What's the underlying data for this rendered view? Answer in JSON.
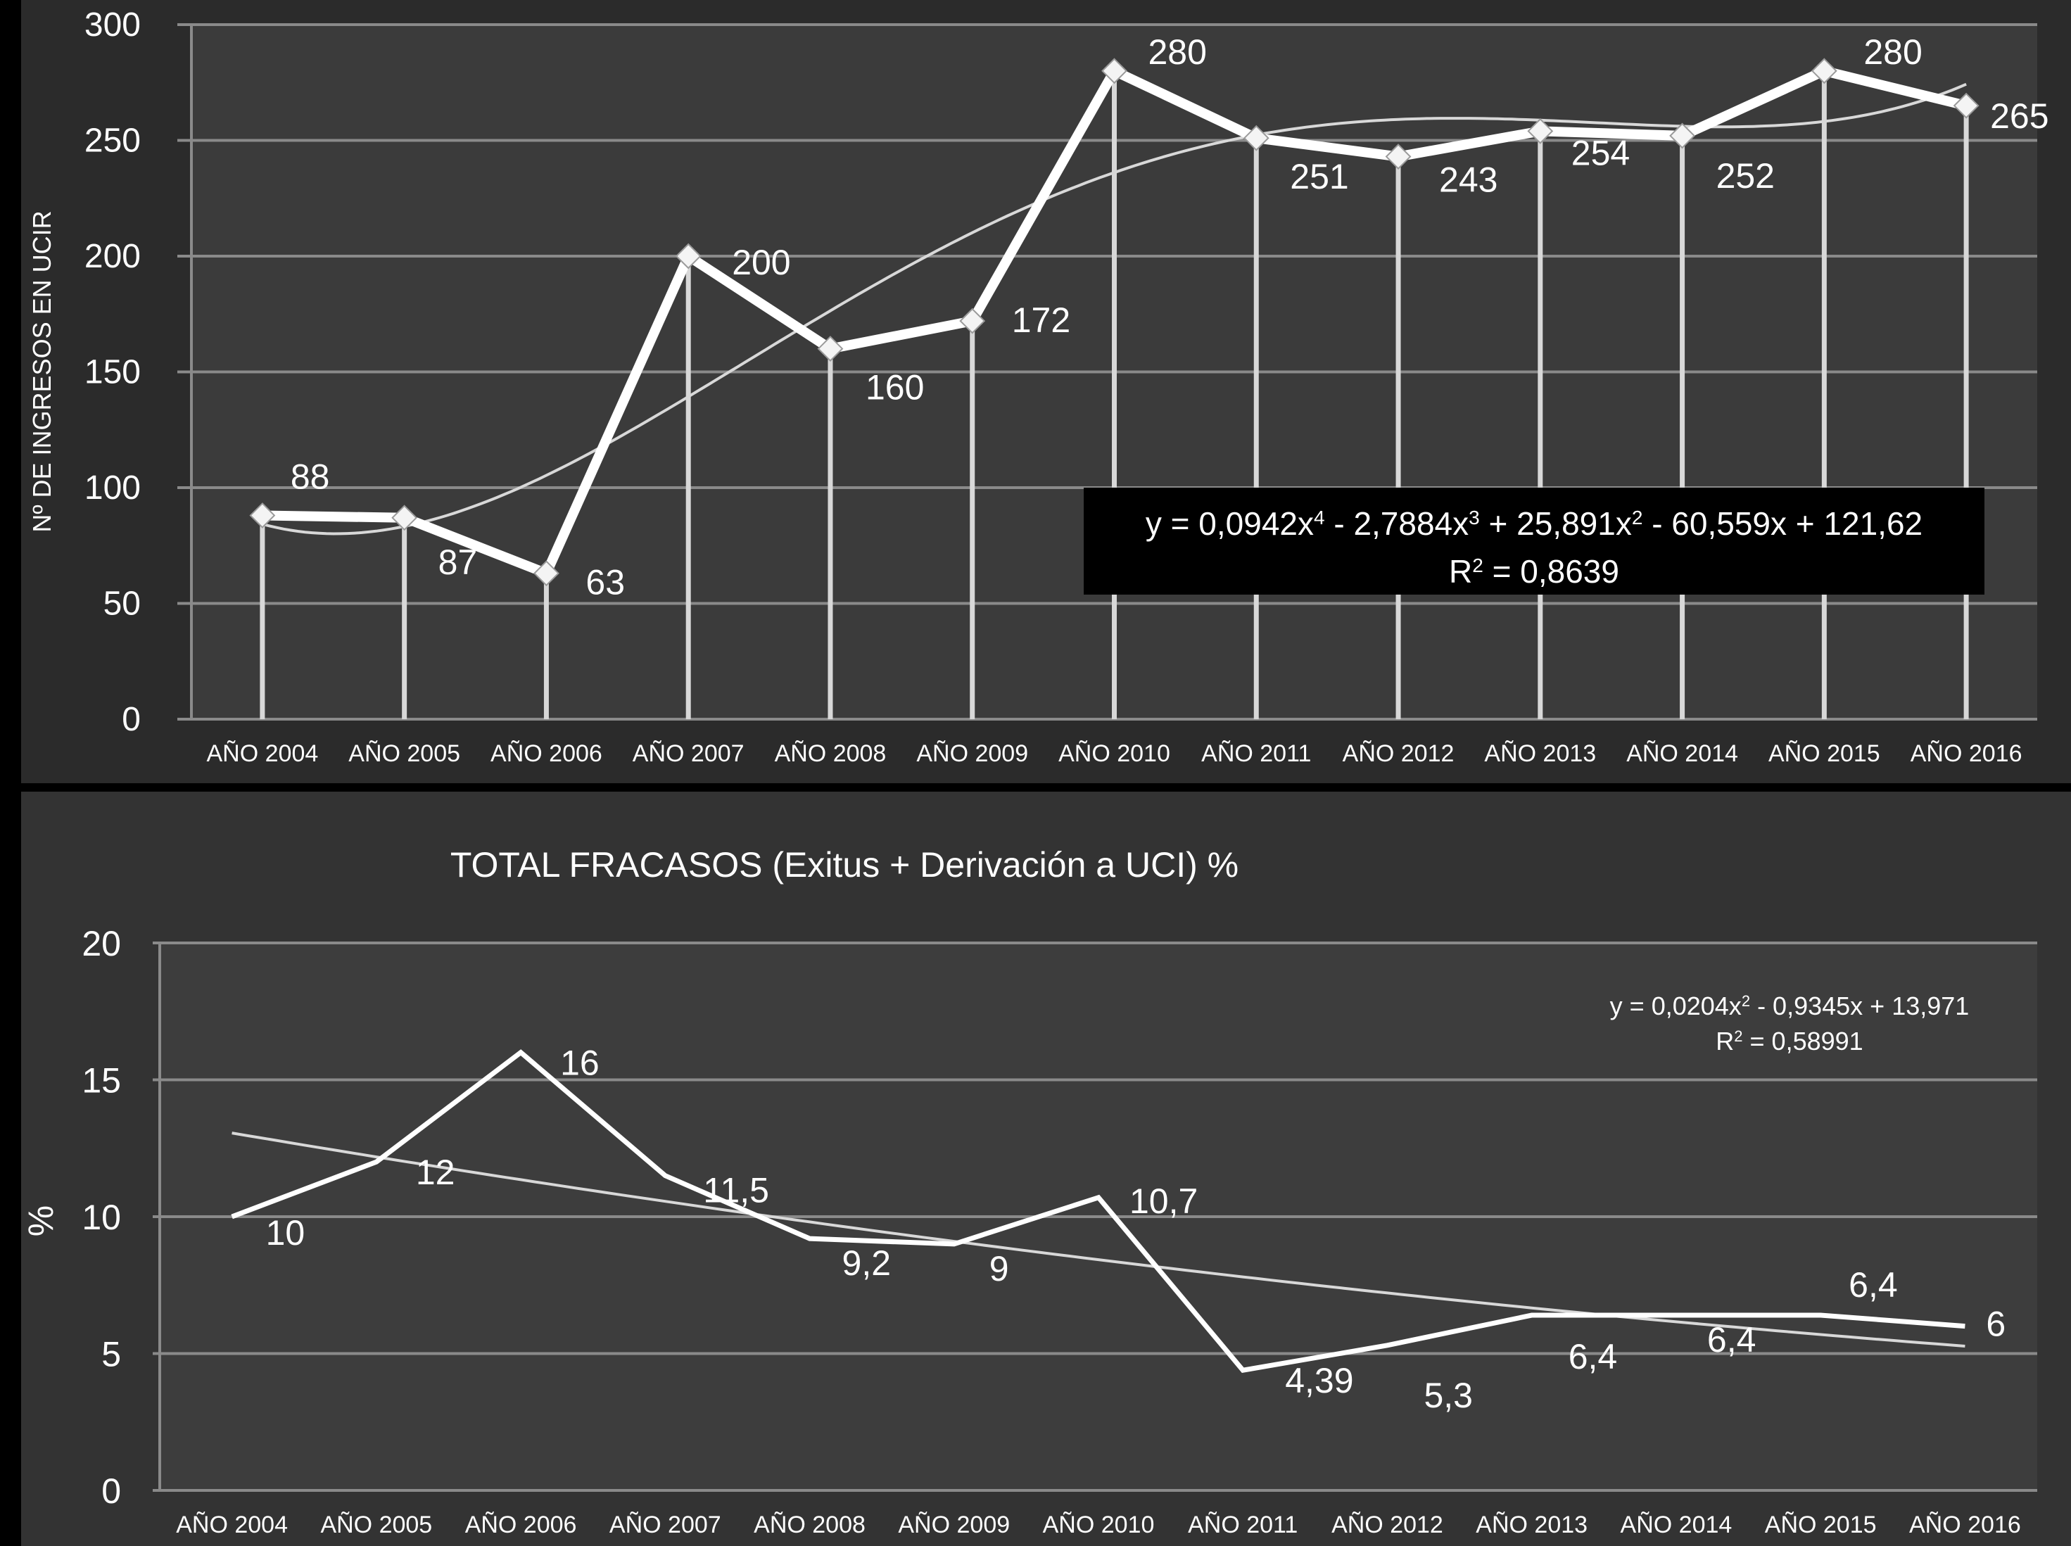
{
  "chart_data": [
    {
      "type": "line",
      "title": "",
      "xlabel": "",
      "ylabel": "Nº DE INGRESOS EN UCIR",
      "ylim": [
        0,
        300
      ],
      "yticks": [
        "0",
        "50",
        "100",
        "150",
        "200",
        "250",
        "300"
      ],
      "categories": [
        "AÑO 2004",
        "AÑO 2005",
        "AÑO 2006",
        "AÑO 2007",
        "AÑO 2008",
        "AÑO 2009",
        "AÑO 2010",
        "AÑO 2011",
        "AÑO 2012",
        "AÑO 2013",
        "AÑO 2014",
        "AÑO 2015",
        "AÑO 2016"
      ],
      "series": [
        {
          "values": [
            88,
            87,
            63,
            200,
            160,
            172,
            280,
            251,
            243,
            254,
            252,
            280,
            265
          ],
          "labels": [
            "88",
            "87",
            "63",
            "200",
            "160",
            "172",
            "280",
            "251",
            "243",
            "254",
            "252",
            "280",
            "265"
          ]
        }
      ],
      "trendline": {
        "type": "polynomial-4",
        "coefficients": [
          0.0942,
          -2.7884,
          25.891,
          -60.559,
          121.62
        ],
        "equation_parts": [
          "y = 0,0942x",
          "4",
          " - 2,7884x",
          "3",
          " + 25,891x",
          "2",
          " - 60,559x + 121,62"
        ],
        "r2_parts": [
          "R",
          "2",
          " = 0,8639"
        ]
      },
      "grid": true,
      "background": "#2b2b2b"
    },
    {
      "type": "line",
      "title": "TOTAL FRACASOS (Exitus + Derivación a UCI) %",
      "xlabel": "",
      "ylabel": "%",
      "ylim": [
        0,
        20
      ],
      "yticks": [
        "0",
        "5",
        "10",
        "15",
        "20"
      ],
      "categories": [
        "AÑO 2004",
        "AÑO 2005",
        "AÑO 2006",
        "AÑO 2007",
        "AÑO 2008",
        "AÑO 2009",
        "AÑO 2010",
        "AÑO 2011",
        "AÑO 2012",
        "AÑO 2013",
        "AÑO 2014",
        "AÑO 2015",
        "AÑO 2016"
      ],
      "series": [
        {
          "values": [
            10,
            12,
            16,
            11.5,
            9.2,
            9,
            10.7,
            4.39,
            5.3,
            6.4,
            6.4,
            6.4,
            6
          ],
          "labels": [
            "10",
            "12",
            "16",
            "11,5",
            "9,2",
            "9",
            "10,7",
            "4,39",
            "5,3",
            "6,4",
            "6,4",
            "6,4",
            "6"
          ]
        }
      ],
      "trendline": {
        "type": "polynomial-2",
        "coefficients": [
          0.0204,
          -0.9345,
          13.971
        ],
        "equation_parts": [
          "y = 0,0204x",
          "2",
          " - 0,9345x + 13,971"
        ],
        "r2_parts": [
          "R",
          "2",
          " = 0,58991"
        ]
      },
      "grid": true,
      "background": "#333333"
    }
  ],
  "colors": {
    "page_background": "#000000",
    "plot1_background": "#2b2b2b",
    "plot2_background": "#333333",
    "gridline": "#8a8a8a",
    "series": "#ffffff",
    "trendline": "#d0d0d0",
    "equation_box": "#000000"
  }
}
